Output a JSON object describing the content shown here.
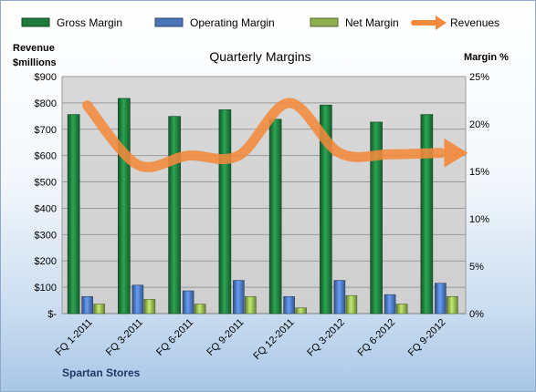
{
  "chart_data": {
    "type": "bar",
    "title": "Quarterly Margins",
    "categories": [
      "FQ 1-2011",
      "FQ 3-2011",
      "FQ 6-2011",
      "FQ 9-2011",
      "FQ 12-2011",
      "FQ 3-2012",
      "FQ 6-2012",
      "FQ 9-2012"
    ],
    "left_axis": {
      "label_line1": "Revenue",
      "label_line2": "$millions",
      "ylim": [
        0,
        900
      ],
      "ticks": [
        0,
        100,
        200,
        300,
        400,
        500,
        600,
        700,
        800,
        900
      ],
      "tick_labels": [
        "$-",
        "$100",
        "$200",
        "$300",
        "$400",
        "$500",
        "$600",
        "$700",
        "$800",
        "$900"
      ]
    },
    "right_axis": {
      "label": "Margin %",
      "ylim": [
        0,
        25
      ],
      "ticks": [
        0,
        5,
        10,
        15,
        20,
        25
      ],
      "tick_labels": [
        "0%",
        "5%",
        "10%",
        "15%",
        "20%",
        "25%"
      ]
    },
    "series": [
      {
        "name": "Gross Margin",
        "type": "bar",
        "axis": "right",
        "color": "#1e7b3c",
        "values": [
          21.0,
          22.7,
          20.8,
          21.5,
          20.5,
          22.0,
          20.2,
          21.0
        ]
      },
      {
        "name": "Operating Margin",
        "type": "bar",
        "axis": "right",
        "color": "#4a74b8",
        "values": [
          1.8,
          3.0,
          2.4,
          3.5,
          1.8,
          3.5,
          2.0,
          3.2
        ]
      },
      {
        "name": "Net Margin",
        "type": "bar",
        "axis": "right",
        "color": "#8fae4f",
        "values": [
          1.0,
          1.5,
          1.0,
          1.8,
          0.6,
          1.9,
          1.0,
          1.8
        ]
      },
      {
        "name": "Revenues",
        "type": "line",
        "axis": "left",
        "color": "#f28a3c",
        "values": [
          790,
          565,
          600,
          600,
          800,
          610,
          605,
          610
        ]
      }
    ],
    "grid": true,
    "legend_position": "top"
  },
  "footer": "Spartan Stores"
}
